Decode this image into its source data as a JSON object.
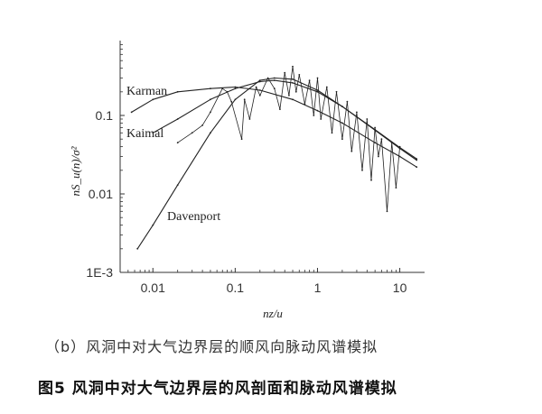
{
  "chart_data": {
    "type": "line",
    "xscale": "log",
    "yscale": "log",
    "xlabel": "nz/u",
    "ylabel": "nS_u(n)/σ²",
    "xlim": [
      0.004,
      20
    ],
    "ylim": [
      0.001,
      0.9
    ],
    "xticks": [
      {
        "v": 0.01,
        "label": "0.01"
      },
      {
        "v": 0.1,
        "label": "0.1"
      },
      {
        "v": 1,
        "label": "1"
      },
      {
        "v": 10,
        "label": "10"
      }
    ],
    "yticks": [
      {
        "v": 0.001,
        "label": "1E-3"
      },
      {
        "v": 0.01,
        "label": "0.01"
      },
      {
        "v": 0.1,
        "label": "0.1"
      }
    ],
    "curve_labels": [
      "Karman",
      "Kaimal",
      "Davenport"
    ],
    "series": [
      {
        "name": "Karman",
        "type": "smooth",
        "x": [
          0.0055,
          0.01,
          0.02,
          0.05,
          0.1,
          0.2,
          0.5,
          1,
          2,
          5,
          10,
          16
        ],
        "y": [
          0.11,
          0.16,
          0.2,
          0.22,
          0.23,
          0.21,
          0.16,
          0.115,
          0.08,
          0.045,
          0.03,
          0.022
        ]
      },
      {
        "name": "Kaimal",
        "type": "smooth",
        "x": [
          0.01,
          0.02,
          0.05,
          0.1,
          0.2,
          0.3,
          0.5,
          1,
          2,
          5,
          10,
          16
        ],
        "y": [
          0.06,
          0.09,
          0.16,
          0.22,
          0.27,
          0.28,
          0.26,
          0.2,
          0.13,
          0.065,
          0.038,
          0.027
        ]
      },
      {
        "name": "Davenport",
        "type": "smooth",
        "x": [
          0.0065,
          0.01,
          0.02,
          0.05,
          0.1,
          0.2,
          0.3,
          0.5,
          1,
          2,
          5,
          10,
          16
        ],
        "y": [
          0.002,
          0.004,
          0.013,
          0.06,
          0.16,
          0.28,
          0.3,
          0.29,
          0.21,
          0.13,
          0.066,
          0.039,
          0.028
        ]
      },
      {
        "name": "",
        "type": "noisy",
        "x": [
          0.02,
          0.03,
          0.04,
          0.05,
          0.07,
          0.08,
          0.09,
          0.12,
          0.13,
          0.15,
          0.18,
          0.2,
          0.25,
          0.3,
          0.35,
          0.4,
          0.45,
          0.5,
          0.55,
          0.6,
          0.7,
          0.8,
          0.9,
          1.0,
          1.1,
          1.3,
          1.5,
          1.7,
          2.0,
          2.3,
          2.6,
          3.0,
          3.5,
          4.0,
          4.5,
          5.0,
          5.5,
          6.0,
          7.0,
          8.0,
          9.0,
          10.0
        ],
        "y": [
          0.045,
          0.06,
          0.075,
          0.11,
          0.22,
          0.2,
          0.15,
          0.05,
          0.16,
          0.09,
          0.23,
          0.18,
          0.3,
          0.22,
          0.12,
          0.35,
          0.18,
          0.42,
          0.2,
          0.33,
          0.14,
          0.28,
          0.1,
          0.3,
          0.09,
          0.23,
          0.06,
          0.2,
          0.05,
          0.15,
          0.035,
          0.11,
          0.02,
          0.09,
          0.015,
          0.07,
          0.03,
          0.05,
          0.006,
          0.045,
          0.012,
          0.04
        ]
      }
    ]
  },
  "caption_sub": "（b）风洞中对大气边界层的顺风向脉动风谱模拟",
  "caption_main": "图5  风洞中对大气边界层的风剖面和脉动风谱模拟"
}
